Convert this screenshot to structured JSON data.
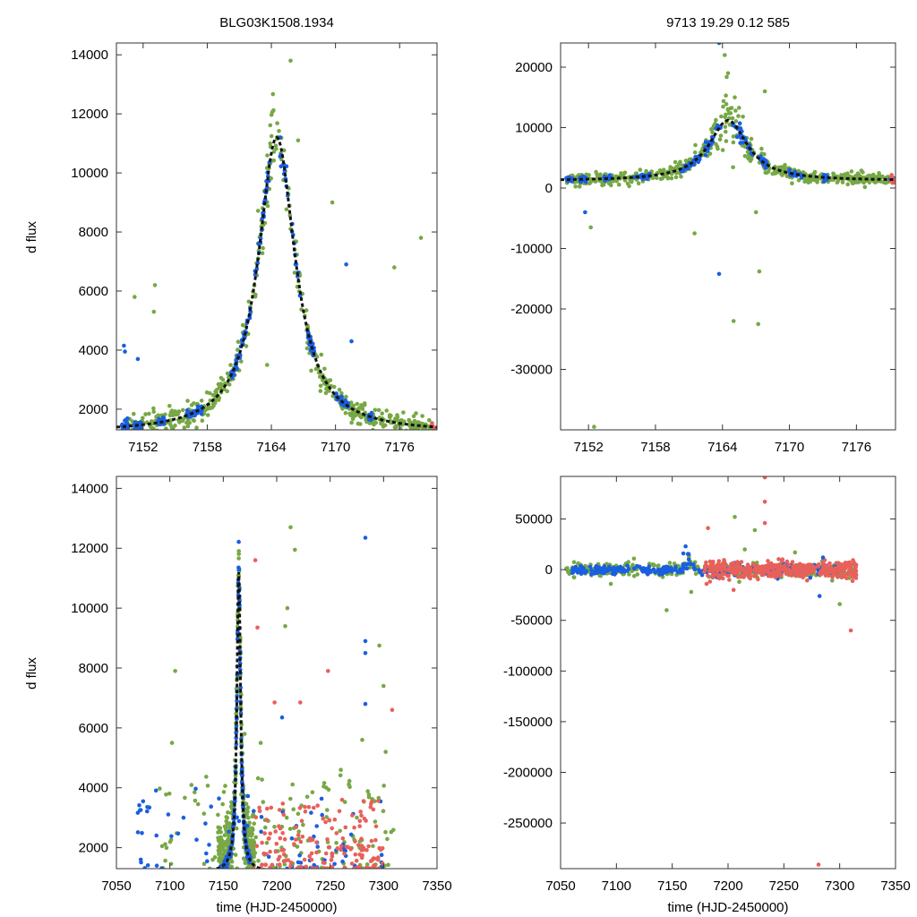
{
  "figure": {
    "title_left": "BLG03K1508.1934",
    "title_right": "9713  19.29  0.12  585",
    "ylabel": "d flux",
    "xlabel": "time (HJD-2450000)"
  },
  "colors": {
    "green": "#77a845",
    "blue": "#1a5fe0",
    "red": "#e8605a",
    "model": "#111111"
  },
  "chart_data": [
    {
      "id": "top-left",
      "type": "scatter",
      "xlim": [
        7149.5,
        7179.5
      ],
      "ylim": [
        1300,
        14400
      ],
      "xticks": [
        7152,
        7158,
        7164,
        7170,
        7176
      ],
      "yticks": [
        2000,
        4000,
        6000,
        8000,
        10000,
        12000,
        14000
      ],
      "xticklabels": [
        "7152",
        "7158",
        "7164",
        "7170",
        "7176"
      ],
      "yticklabels": [
        "2000",
        "4000",
        "6000",
        "8000",
        "10000",
        "12000",
        "14000"
      ],
      "model": {
        "t0": 7164.5,
        "peak": 11200,
        "base": 1200,
        "tau": 2.1
      },
      "series": [
        {
          "name": "green",
          "color": "green",
          "scatter": 0.07,
          "n": 520,
          "xrange": [
            7150,
            7179
          ]
        },
        {
          "name": "blue",
          "color": "blue",
          "scatter": 0.025,
          "n": 330,
          "segments": [
            [
              7150,
              7150.6
            ],
            [
              7151.2,
              7151.8
            ],
            [
              7153.4,
              7154.0
            ],
            [
              7156.1,
              7157.5
            ],
            [
              7160.2,
              7162.1
            ],
            [
              7162.4,
              7163.9
            ],
            [
              7164.8,
              7166.7
            ],
            [
              7167.4,
              7168.0
            ],
            [
              7170.0,
              7171.2
            ],
            [
              7173.1,
              7173.4
            ]
          ]
        },
        {
          "name": "red",
          "color": "red",
          "scatter": 0.04,
          "n": 8,
          "segments": [
            [
              7179.0,
              7179.5
            ]
          ]
        }
      ],
      "outliers": [
        {
          "x": 7150.2,
          "y": 4150,
          "color": "blue"
        },
        {
          "x": 7150.3,
          "y": 3950,
          "color": "blue"
        },
        {
          "x": 7151.2,
          "y": 5800,
          "color": "green"
        },
        {
          "x": 7153.1,
          "y": 6200,
          "color": "green"
        },
        {
          "x": 7153.0,
          "y": 5300,
          "color": "green"
        },
        {
          "x": 7151.5,
          "y": 3700,
          "color": "blue"
        },
        {
          "x": 7165.8,
          "y": 13800,
          "color": "green"
        },
        {
          "x": 7166.5,
          "y": 11100,
          "color": "green"
        },
        {
          "x": 7169.7,
          "y": 9000,
          "color": "green"
        },
        {
          "x": 7171.0,
          "y": 6900,
          "color": "blue"
        },
        {
          "x": 7175.5,
          "y": 6800,
          "color": "green"
        },
        {
          "x": 7178.0,
          "y": 7800,
          "color": "green"
        },
        {
          "x": 7163.6,
          "y": 3500,
          "color": "green"
        },
        {
          "x": 7171.5,
          "y": 4300,
          "color": "blue"
        }
      ]
    },
    {
      "id": "top-right",
      "type": "scatter",
      "xlim": [
        7149.5,
        7179.5
      ],
      "ylim": [
        -40000,
        24000
      ],
      "xticks": [
        7152,
        7158,
        7164,
        7170,
        7176
      ],
      "yticks": [
        -30000,
        -20000,
        -10000,
        0,
        10000,
        20000
      ],
      "xticklabels": [
        "7152",
        "7158",
        "7164",
        "7170",
        "7176"
      ],
      "yticklabels": [
        "-30000",
        "-20000",
        "-10000",
        "0",
        "10000",
        "20000"
      ],
      "model": {
        "t0": 7164.5,
        "peak": 11200,
        "base": 1200,
        "tau": 2.1
      },
      "series": [
        {
          "name": "green",
          "color": "green",
          "scatter": 0.2,
          "n": 520,
          "xrange": [
            7150,
            7179
          ]
        },
        {
          "name": "blue",
          "color": "blue",
          "scatter": 0.08,
          "n": 330,
          "segments": [
            [
              7150,
              7150.6
            ],
            [
              7151.2,
              7151.8
            ],
            [
              7153.4,
              7154.0
            ],
            [
              7156.1,
              7157.5
            ],
            [
              7160.2,
              7162.1
            ],
            [
              7162.4,
              7163.9
            ],
            [
              7164.8,
              7166.7
            ],
            [
              7167.4,
              7168.0
            ],
            [
              7170.0,
              7171.2
            ],
            [
              7173.1,
              7173.4
            ],
            [
              7179.0,
              7179.5
            ]
          ]
        },
        {
          "name": "red",
          "color": "red",
          "scatter": 0.15,
          "n": 10,
          "segments": [
            [
              7178.9,
              7179.4
            ]
          ]
        }
      ],
      "outliers": [
        {
          "x": 7163.7,
          "y": 24000,
          "color": "blue"
        },
        {
          "x": 7163.7,
          "y": -14200,
          "color": "blue"
        },
        {
          "x": 7165.0,
          "y": -22000,
          "color": "green"
        },
        {
          "x": 7167.2,
          "y": -22500,
          "color": "green"
        },
        {
          "x": 7167.3,
          "y": -13800,
          "color": "green"
        },
        {
          "x": 7161.5,
          "y": -7500,
          "color": "green"
        },
        {
          "x": 7152.2,
          "y": -6500,
          "color": "green"
        },
        {
          "x": 7151.7,
          "y": -4000,
          "color": "blue"
        },
        {
          "x": 7152.5,
          "y": -39500,
          "color": "green"
        },
        {
          "x": 7167.8,
          "y": 16000,
          "color": "green"
        },
        {
          "x": 7164.2,
          "y": 22000,
          "color": "green"
        },
        {
          "x": 7164.5,
          "y": 19000,
          "color": "green"
        },
        {
          "x": 7167.0,
          "y": -4000,
          "color": "green"
        },
        {
          "x": 7167.5,
          "y": 6500,
          "color": "green"
        }
      ]
    },
    {
      "id": "bottom-left",
      "type": "scatter",
      "xlim": [
        7050,
        7350
      ],
      "ylim": [
        1300,
        14400
      ],
      "xticks": [
        7050,
        7100,
        7150,
        7200,
        7250,
        7300,
        7350
      ],
      "yticks": [
        2000,
        4000,
        6000,
        8000,
        10000,
        12000,
        14000
      ],
      "xticklabels": [
        "7050",
        "7100",
        "7150",
        "7200",
        "7250",
        "7300",
        "7350"
      ],
      "yticklabels": [
        "2000",
        "4000",
        "6000",
        "8000",
        "10000",
        "12000",
        "14000"
      ],
      "model": {
        "t0": 7164.5,
        "peak": 11200,
        "base": 1200,
        "tau": 2.1
      },
      "series": [
        {
          "name": "green",
          "color": "green",
          "scatter": 0.09,
          "n": 420,
          "xrange": [
            7145,
            7179
          ]
        },
        {
          "name": "blue",
          "color": "blue",
          "scatter": 0.03,
          "n": 280,
          "xrange": [
            7150,
            7175
          ]
        },
        {
          "name": "green-wide",
          "color": "green",
          "wide": true,
          "n": 140,
          "xrange": [
            7090,
            7310
          ],
          "yrange": [
            1300,
            4500
          ]
        },
        {
          "name": "blue-wide",
          "color": "blue",
          "wide": true,
          "n": 80,
          "xrange": [
            7070,
            7300
          ],
          "yrange": [
            1300,
            4000
          ]
        },
        {
          "name": "red-wide",
          "color": "red",
          "wide": true,
          "n": 160,
          "xrange": [
            7178,
            7300
          ],
          "yrange": [
            1300,
            3600
          ]
        }
      ],
      "outliers": [
        {
          "x": 7105,
          "y": 7900,
          "color": "green"
        },
        {
          "x": 7102,
          "y": 5500,
          "color": "green"
        },
        {
          "x": 7075,
          "y": 3550,
          "color": "blue"
        },
        {
          "x": 7072,
          "y": 3250,
          "color": "blue"
        },
        {
          "x": 7180,
          "y": 11600,
          "color": "red"
        },
        {
          "x": 7182,
          "y": 9350,
          "color": "red"
        },
        {
          "x": 7213,
          "y": 12700,
          "color": "green"
        },
        {
          "x": 7217,
          "y": 11950,
          "color": "green"
        },
        {
          "x": 7210,
          "y": 10000,
          "color": "green"
        },
        {
          "x": 7208,
          "y": 9400,
          "color": "green"
        },
        {
          "x": 7283,
          "y": 12350,
          "color": "blue"
        },
        {
          "x": 7283,
          "y": 8900,
          "color": "blue"
        },
        {
          "x": 7283,
          "y": 8500,
          "color": "blue"
        },
        {
          "x": 7296,
          "y": 8750,
          "color": "green"
        },
        {
          "x": 7300,
          "y": 7400,
          "color": "green"
        },
        {
          "x": 7308,
          "y": 6600,
          "color": "red"
        },
        {
          "x": 7248,
          "y": 7900,
          "color": "red"
        },
        {
          "x": 7222,
          "y": 6850,
          "color": "red"
        },
        {
          "x": 7198,
          "y": 6850,
          "color": "red"
        },
        {
          "x": 7205,
          "y": 6350,
          "color": "blue"
        },
        {
          "x": 7170,
          "y": 5800,
          "color": "green"
        },
        {
          "x": 7185,
          "y": 5500,
          "color": "green"
        },
        {
          "x": 7280,
          "y": 5600,
          "color": "green"
        },
        {
          "x": 7260,
          "y": 4600,
          "color": "green"
        },
        {
          "x": 7283,
          "y": 6800,
          "color": "blue"
        },
        {
          "x": 7302,
          "y": 5200,
          "color": "green"
        }
      ]
    },
    {
      "id": "bottom-right",
      "type": "scatter",
      "xlim": [
        7050,
        7350
      ],
      "ylim": [
        -295000,
        92000
      ],
      "xticks": [
        7050,
        7100,
        7150,
        7200,
        7250,
        7300,
        7350
      ],
      "yticks": [
        -250000,
        -200000,
        -150000,
        -100000,
        -50000,
        0,
        50000
      ],
      "xticklabels": [
        "7050",
        "7100",
        "7150",
        "7200",
        "7250",
        "7300",
        "7350"
      ],
      "yticklabels": [
        "-250000",
        "-200000",
        "-150000",
        "-100000",
        "-50000",
        "0",
        "50000"
      ],
      "series": [
        {
          "name": "green",
          "color": "green",
          "band": true,
          "n": 360,
          "xrange": [
            7055,
            7315
          ],
          "spread": 3500
        },
        {
          "name": "blue",
          "color": "blue",
          "band": true,
          "n": 360,
          "xrange": [
            7060,
            7300
          ],
          "spread": 2500
        },
        {
          "name": "red",
          "color": "red",
          "band": true,
          "n": 420,
          "xrange": [
            7178,
            7315
          ],
          "spread": 4000
        }
      ],
      "outliers": [
        {
          "x": 7162,
          "y": 23000,
          "color": "blue"
        },
        {
          "x": 7160,
          "y": 16000,
          "color": "blue"
        },
        {
          "x": 7233,
          "y": 91000,
          "color": "red"
        },
        {
          "x": 7233,
          "y": 67000,
          "color": "red"
        },
        {
          "x": 7233,
          "y": 46000,
          "color": "red"
        },
        {
          "x": 7182,
          "y": 41000,
          "color": "red"
        },
        {
          "x": 7206,
          "y": 52000,
          "color": "green"
        },
        {
          "x": 7224,
          "y": 39000,
          "color": "green"
        },
        {
          "x": 7310,
          "y": -60000,
          "color": "red"
        },
        {
          "x": 7281,
          "y": -291000,
          "color": "red"
        },
        {
          "x": 7145,
          "y": -40000,
          "color": "green"
        },
        {
          "x": 7300,
          "y": -34000,
          "color": "green"
        },
        {
          "x": 7167,
          "y": -22000,
          "color": "green"
        },
        {
          "x": 7282,
          "y": -26000,
          "color": "blue"
        },
        {
          "x": 7215,
          "y": 20000,
          "color": "green"
        },
        {
          "x": 7260,
          "y": 17000,
          "color": "green"
        },
        {
          "x": 7285,
          "y": 12000,
          "color": "blue"
        },
        {
          "x": 7095,
          "y": -14000,
          "color": "green"
        },
        {
          "x": 7210,
          "y": -12000,
          "color": "green"
        },
        {
          "x": 7205,
          "y": -20000,
          "color": "red"
        }
      ]
    }
  ]
}
